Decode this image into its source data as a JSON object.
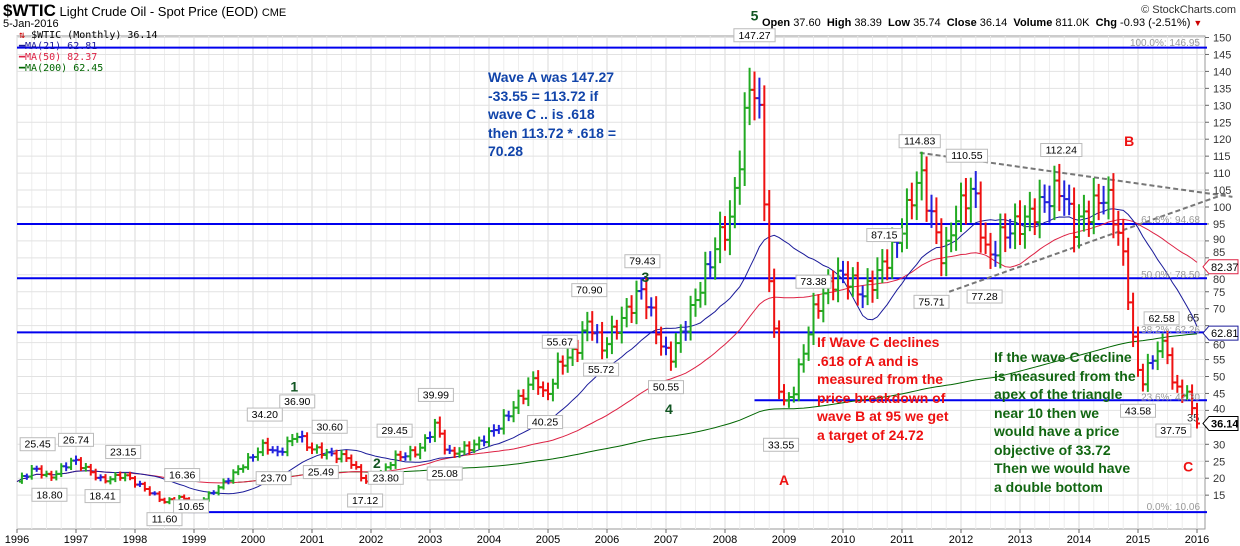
{
  "header": {
    "symbol": "$WTIC",
    "name": "Light Crude Oil - Spot Price (EOD)",
    "exchange": "CME",
    "date": "5-Jan-2016",
    "copyright": "© StockCharts.com"
  },
  "quote": {
    "open_label": "Open",
    "open": "37.60",
    "high_label": "High",
    "high": "38.39",
    "low_label": "Low",
    "low": "35.74",
    "close_label": "Close",
    "close": "36.14",
    "volume_label": "Volume",
    "volume": "811.0K",
    "chg_label": "Chg",
    "chg": "-0.93 (-2.51%)"
  },
  "legend": {
    "main": "$WTIC (Monthly) 36.14",
    "ma21": "MA(21) 62.81",
    "ma50": "MA(50) 82.37",
    "ma200": "MA(200) 62.45"
  },
  "colors": {
    "up": "#22aa22",
    "down": "#ee1111",
    "flat": "#2222dd",
    "ma21": "#1a1a99",
    "ma50": "#dd2244",
    "ma200": "#006600",
    "hline": "#0000ee"
  },
  "notes": {
    "wave_a": [
      "Wave A was 147.27",
      "-33.55 = 113.72 if",
      "wave C ..  is .618",
      "then 113.72 * .618 =",
      "70.28"
    ],
    "red": [
      "If Wave C declines",
      ".618 of A and is",
      "measured from the",
      "price breakdown of",
      "wave B at 95 we get",
      "a target of 24.72"
    ],
    "green": [
      "If the wave C decline",
      "is measured from the",
      "apex of the triangle",
      "near 10 then we",
      "would have a price",
      "objective of 33.72",
      "Then we would have",
      "a double bottom"
    ]
  },
  "chart_data": {
    "type": "ohlc-bar",
    "title": "$WTIC Light Crude Oil - Spot Price (EOD) Monthly",
    "xlim": [
      1996,
      2016.1
    ],
    "ylim": [
      5,
      152
    ],
    "x_ticks": [
      "1996",
      "1997",
      "1998",
      "1999",
      "2000",
      "2001",
      "2002",
      "2003",
      "2004",
      "2005",
      "2006",
      "2007",
      "2008",
      "2009",
      "2010",
      "2011",
      "2012",
      "2013",
      "2014",
      "2015",
      "2016"
    ],
    "y_ticks": [
      15,
      20,
      25,
      30,
      35,
      40,
      45,
      50,
      55,
      60,
      65,
      70,
      75,
      80,
      85,
      90,
      95,
      100,
      105,
      110,
      115,
      120,
      125,
      130,
      135,
      140,
      145,
      150
    ],
    "price_pivots": [
      [
        1996.0,
        19
      ],
      [
        1996.3,
        23
      ],
      [
        1996.55,
        20
      ],
      [
        1996.95,
        25.5
      ],
      [
        1997.45,
        19.2
      ],
      [
        1997.8,
        21
      ],
      [
        1998.2,
        16.5
      ],
      [
        1998.5,
        13
      ],
      [
        1998.8,
        14.5
      ],
      [
        1998.95,
        11.2
      ],
      [
        1999.4,
        17
      ],
      [
        1999.9,
        25
      ],
      [
        2000.2,
        30
      ],
      [
        2000.4,
        27
      ],
      [
        2000.75,
        33
      ],
      [
        2000.95,
        29
      ],
      [
        2001.3,
        27
      ],
      [
        2001.6,
        26
      ],
      [
        2001.9,
        19
      ],
      [
        2002.1,
        20
      ],
      [
        2002.4,
        26
      ],
      [
        2002.8,
        28
      ],
      [
        2003.1,
        36
      ],
      [
        2003.3,
        27
      ],
      [
        2003.8,
        30
      ],
      [
        2004.2,
        36
      ],
      [
        2004.8,
        50
      ],
      [
        2004.95,
        43
      ],
      [
        2005.2,
        54
      ],
      [
        2005.45,
        57
      ],
      [
        2005.7,
        67
      ],
      [
        2005.9,
        58
      ],
      [
        2006.1,
        63
      ],
      [
        2006.6,
        76
      ],
      [
        2006.9,
        60
      ],
      [
        2007.05,
        55
      ],
      [
        2007.3,
        64
      ],
      [
        2007.55,
        75
      ],
      [
        2007.9,
        91
      ],
      [
        2008.1,
        96
      ],
      [
        2008.45,
        140
      ],
      [
        2008.6,
        124
      ],
      [
        2008.75,
        78
      ],
      [
        2008.95,
        41
      ],
      [
        2009.15,
        45
      ],
      [
        2009.5,
        69
      ],
      [
        2009.8,
        78
      ],
      [
        2010.0,
        80
      ],
      [
        2010.35,
        74
      ],
      [
        2010.9,
        89
      ],
      [
        2011.3,
        110
      ],
      [
        2011.7,
        84
      ],
      [
        2011.9,
        97
      ],
      [
        2012.2,
        106
      ],
      [
        2012.45,
        84
      ],
      [
        2012.7,
        92
      ],
      [
        2013.0,
        95
      ],
      [
        2013.7,
        106
      ],
      [
        2013.9,
        94
      ],
      [
        2014.45,
        104
      ],
      [
        2014.65,
        94
      ],
      [
        2014.8,
        80
      ],
      [
        2014.95,
        55
      ],
      [
        2015.05,
        48
      ],
      [
        2015.35,
        59
      ],
      [
        2015.5,
        58
      ],
      [
        2015.6,
        46
      ],
      [
        2015.8,
        46
      ],
      [
        2015.95,
        39
      ],
      [
        2016.02,
        36.14
      ]
    ],
    "price_labels": [
      [
        1996.35,
        25.45,
        "above"
      ],
      [
        1996.55,
        18.8,
        "below"
      ],
      [
        1997.0,
        26.74,
        "above"
      ],
      [
        1997.45,
        18.41,
        "below"
      ],
      [
        1997.8,
        23.15,
        "above"
      ],
      [
        1998.8,
        16.36,
        "above"
      ],
      [
        1998.5,
        11.6,
        "below"
      ],
      [
        1998.95,
        10.65,
        "below"
      ],
      [
        2000.2,
        34.2,
        "above"
      ],
      [
        2000.35,
        23.7,
        "below"
      ],
      [
        2000.75,
        36.9,
        "above"
      ],
      [
        2001.3,
        30.6,
        "above"
      ],
      [
        2001.15,
        25.49,
        "below"
      ],
      [
        2001.9,
        17.12,
        "below"
      ],
      [
        2002.4,
        29.45,
        "above"
      ],
      [
        2002.25,
        23.8,
        "below"
      ],
      [
        2003.1,
        39.99,
        "above"
      ],
      [
        2003.25,
        25.08,
        "below"
      ],
      [
        2005.2,
        55.67,
        "above"
      ],
      [
        2004.95,
        40.25,
        "below"
      ],
      [
        2005.7,
        70.9,
        "above"
      ],
      [
        2005.9,
        55.72,
        "below"
      ],
      [
        2006.6,
        79.43,
        "above"
      ],
      [
        2007.0,
        50.55,
        "below"
      ],
      [
        2008.5,
        147.27,
        "above"
      ],
      [
        2008.95,
        33.55,
        "below"
      ],
      [
        2009.5,
        73.38,
        "above"
      ],
      [
        2010.7,
        87.15,
        "above"
      ],
      [
        2011.5,
        75.71,
        "below"
      ],
      [
        2011.3,
        114.83,
        "above"
      ],
      [
        2012.1,
        110.55,
        "above"
      ],
      [
        2012.4,
        77.28,
        "below"
      ],
      [
        2013.7,
        112.24,
        "above"
      ],
      [
        2015.4,
        62.58,
        "above"
      ],
      [
        2015.0,
        43.58,
        "below"
      ],
      [
        2015.6,
        37.75,
        "below"
      ]
    ],
    "horizontal_lines": [
      [
        1996.0,
        147.0
      ],
      [
        1996.0,
        95.0
      ],
      [
        1996.0,
        79.0
      ],
      [
        1996.0,
        63.0
      ],
      [
        2008.5,
        43.0
      ],
      [
        1998.9,
        10.0
      ]
    ],
    "fib_labels": [
      [
        146.95,
        "100.0%: 146.95"
      ],
      [
        94.68,
        "61.8%: 94.68"
      ],
      [
        78.5,
        "50.0%: 78.50"
      ],
      [
        62.26,
        "38.2%: 62.26"
      ],
      [
        42.3,
        "23.6%: 42.30"
      ],
      [
        10.06,
        "0.0%: 10.06"
      ]
    ],
    "trendlines": [
      [
        [
          2011.3,
          116
        ],
        [
          2016.6,
          103
        ]
      ],
      [
        [
          2011.8,
          75
        ],
        [
          2016.5,
          104
        ]
      ]
    ],
    "wave_labels": [
      [
        2008.5,
        155,
        "5",
        "#115522"
      ],
      [
        2006.65,
        82,
        "3",
        "#115522"
      ],
      [
        2000.7,
        42,
        "1",
        "#115522"
      ],
      [
        2002.1,
        16,
        "2",
        "#115522"
      ],
      [
        2007.05,
        39,
        "4",
        "#115522"
      ],
      [
        2009.0,
        18,
        "A",
        "#ee1111"
      ],
      [
        2014.85,
        118,
        "B",
        "#ee1111"
      ],
      [
        2015.85,
        22,
        "C",
        "#ee1111"
      ]
    ],
    "last_values": [
      [
        82.37,
        "82.37",
        "#dd2244"
      ],
      [
        62.81,
        "62.81",
        "#1a1a99"
      ],
      [
        36.14,
        "36.14",
        "#000000"
      ]
    ]
  }
}
